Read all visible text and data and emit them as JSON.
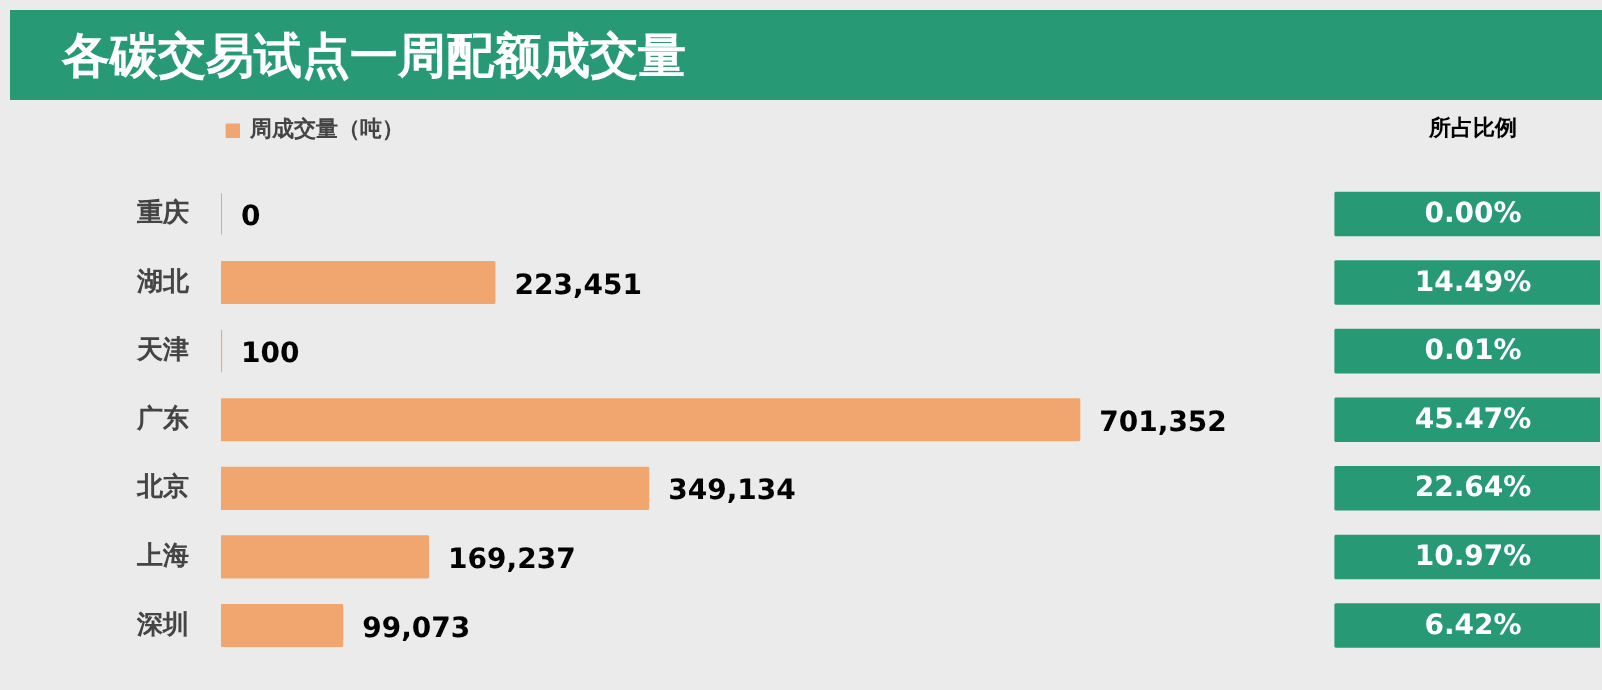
{
  "chart_data": [
    {
      "type": "bar",
      "orientation": "horizontal",
      "title": "各碳交易试点一周配额成交量",
      "categories": [
        "重庆",
        "湖北",
        "天津",
        "广东",
        "北京",
        "上海",
        "深圳"
      ],
      "series": [
        {
          "name": "周成交量（吨）",
          "color": "#f0a66e",
          "values": [
            0,
            223451,
            100,
            701352,
            349134,
            169237,
            99073
          ],
          "value_labels": [
            "0",
            "223,451",
            "100",
            "701,352",
            "349,134",
            "169,237",
            "99,073"
          ]
        }
      ],
      "legend": "top left",
      "grid": false
    },
    {
      "type": "other",
      "title": "所占比例",
      "color": "#279a75",
      "annotations": [
        "0.00%",
        "14.49%",
        "0.01%",
        "45.47%",
        "22.64%",
        "10.97%",
        "6.42%"
      ]
    }
  ]
}
